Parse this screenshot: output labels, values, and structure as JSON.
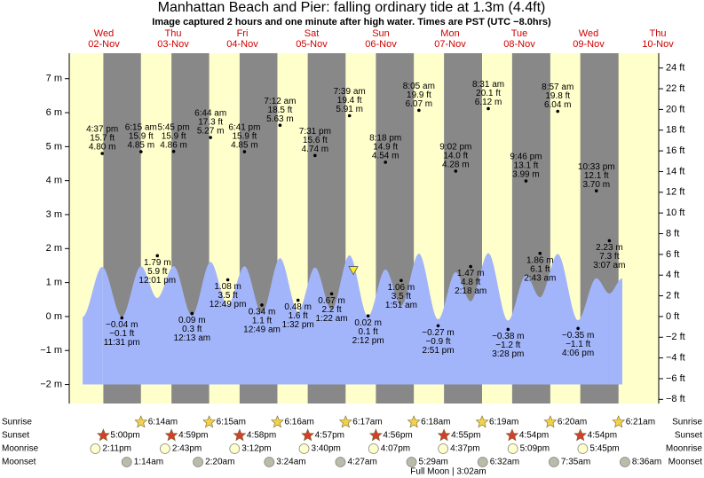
{
  "chart_data": {
    "type": "tide",
    "title": "Manhattan Beach and Pier: falling  ordinary tide at 1.3m (4.4ft)",
    "subtitle": "Image captured 2 hours and one minute after high water. Times are PST (UTC −8.0hrs)",
    "current_level_ft": 4.4,
    "ylim": [
      -2.56,
      7.75
    ],
    "yticks": [
      {
        "value": -2,
        "label": "−2 m"
      },
      {
        "value": -1,
        "label": "−1 m"
      },
      {
        "value": 0,
        "label": "0 m"
      },
      {
        "value": 1,
        "label": "1 m"
      },
      {
        "value": 2,
        "label": "2 m"
      },
      {
        "value": 3,
        "label": "3 m"
      },
      {
        "value": 4,
        "label": "4 m"
      },
      {
        "value": 5,
        "label": "5 m"
      },
      {
        "value": 6,
        "label": "6 m"
      },
      {
        "value": 7,
        "label": "7 m"
      }
    ],
    "y2lim": [
      -8.4,
      25.43
    ],
    "y2ticks": [
      {
        "value": -8,
        "label": "−8 ft"
      },
      {
        "value": -6,
        "label": "−6 ft"
      },
      {
        "value": -4,
        "label": "−4 ft"
      },
      {
        "value": -2,
        "label": "−2 ft"
      },
      {
        "value": 0,
        "label": "0 ft"
      },
      {
        "value": 2,
        "label": "2 ft"
      },
      {
        "value": 4,
        "label": "4 ft"
      },
      {
        "value": 6,
        "label": "6 ft"
      },
      {
        "value": 8,
        "label": "8 ft"
      },
      {
        "value": 10,
        "label": "10 ft"
      },
      {
        "value": 12,
        "label": "12 ft"
      },
      {
        "value": 14,
        "label": "14 ft"
      },
      {
        "value": 16,
        "label": "16 ft"
      },
      {
        "value": 18,
        "label": "18 ft"
      },
      {
        "value": 20,
        "label": "20 ft"
      },
      {
        "value": 22,
        "label": "22 ft"
      },
      {
        "value": 24,
        "label": "24 ft"
      }
    ],
    "curve_axis": "y2",
    "curve_color": "#a3b5fa",
    "night_color": "#888888",
    "day_color": "#ffffcc",
    "row_labels": [
      "Sunrise",
      "Sunset",
      "Moonrise",
      "Moonset"
    ],
    "moon_phase": "Full Moon | 3:02am",
    "days": [
      {
        "weekday": "Wed",
        "date": "02-Nov",
        "sunset": "5:00pm",
        "moonrise": "2:11pm",
        "tides": [
          {
            "time": "4:37 pm",
            "value": 4.8,
            "value_label": "4.80 m",
            "ft_label": "15.7 ft"
          },
          {
            "time": "11:31 pm",
            "value": -0.04,
            "value_label": "−0.04 m",
            "ft_label": "−0.1 ft"
          }
        ]
      },
      {
        "weekday": "Thu",
        "date": "03-Nov",
        "sunrise": "6:14am",
        "sunset": "4:59pm",
        "moonrise": "2:43pm",
        "moonset": "1:14am",
        "tides": [
          {
            "time": "6:15 am",
            "value": 4.85,
            "value_label": "4.85 m",
            "ft_label": "15.9 ft"
          },
          {
            "time": "12:01 pm",
            "value": 1.79,
            "value_label": "1.79 m",
            "ft_label": "5.9 ft"
          },
          {
            "time": "5:45 pm",
            "value": 4.86,
            "value_label": "4.86 m",
            "ft_label": "15.9 ft"
          }
        ]
      },
      {
        "weekday": "Fri",
        "date": "04-Nov",
        "sunrise": "6:15am",
        "sunset": "4:58pm",
        "moonrise": "3:12pm",
        "moonset": "2:20am",
        "tides": [
          {
            "time": "12:13 am",
            "value": 0.09,
            "value_label": "0.09 m",
            "ft_label": "0.3 ft"
          },
          {
            "time": "6:44 am",
            "value": 5.27,
            "value_label": "5.27 m",
            "ft_label": "17.3 ft"
          },
          {
            "time": "12:49 pm",
            "value": 1.08,
            "value_label": "1.08 m",
            "ft_label": "3.5 ft"
          },
          {
            "time": "6:41 pm",
            "value": 4.85,
            "value_label": "4.85 m",
            "ft_label": "15.9 ft"
          }
        ]
      },
      {
        "weekday": "Sat",
        "date": "05-Nov",
        "sunrise": "6:16am",
        "sunset": "4:57pm",
        "moonrise": "3:40pm",
        "moonset": "3:24am",
        "tides": [
          {
            "time": "12:49 am",
            "value": 0.34,
            "value_label": "0.34 m",
            "ft_label": "1.1 ft"
          },
          {
            "time": "7:12 am",
            "value": 5.63,
            "value_label": "5.63 m",
            "ft_label": "18.5 ft"
          },
          {
            "time": "1:32 pm",
            "value": 0.48,
            "value_label": "0.48 m",
            "ft_label": "1.6 ft"
          },
          {
            "time": "7:31 pm",
            "value": 4.74,
            "value_label": "4.74 m",
            "ft_label": "15.6 ft"
          }
        ]
      },
      {
        "weekday": "Sun",
        "date": "06-Nov",
        "sunrise": "6:17am",
        "sunset": "4:56pm",
        "moonrise": "4:07pm",
        "moonset": "4:27am",
        "tides": [
          {
            "time": "1:22 am",
            "value": 0.67,
            "value_label": "0.67 m",
            "ft_label": "2.2 ft"
          },
          {
            "time": "7:39 am",
            "value": 5.91,
            "value_label": "5.91 m",
            "ft_label": "19.4 ft"
          },
          {
            "time": "2:12 pm",
            "value": 0.02,
            "value_label": "0.02 m",
            "ft_label": "0.1 ft"
          },
          {
            "time": "8:18 pm",
            "value": 4.54,
            "value_label": "4.54 m",
            "ft_label": "14.9 ft"
          }
        ]
      },
      {
        "weekday": "Mon",
        "date": "07-Nov",
        "sunrise": "6:18am",
        "sunset": "4:55pm",
        "moonrise": "4:37pm",
        "moonset": "5:29am",
        "tides": [
          {
            "time": "1:51 am",
            "value": 1.06,
            "value_label": "1.06 m",
            "ft_label": "3.5 ft"
          },
          {
            "time": "8:05 am",
            "value": 6.07,
            "value_label": "6.07 m",
            "ft_label": "19.9 ft"
          },
          {
            "time": "2:51 pm",
            "value": -0.27,
            "value_label": "−0.27 m",
            "ft_label": "−0.9 ft"
          },
          {
            "time": "9:02 pm",
            "value": 4.28,
            "value_label": "4.28 m",
            "ft_label": "14.0 ft"
          }
        ]
      },
      {
        "weekday": "Tue",
        "date": "08-Nov",
        "sunrise": "6:19am",
        "sunset": "4:54pm",
        "moonrise": "5:09pm",
        "moonset": "6:32am",
        "tides": [
          {
            "time": "2:18 am",
            "value": 1.47,
            "value_label": "1.47 m",
            "ft_label": "4.8 ft"
          },
          {
            "time": "8:31 am",
            "value": 6.12,
            "value_label": "6.12 m",
            "ft_label": "20.1 ft"
          },
          {
            "time": "3:28 pm",
            "value": -0.38,
            "value_label": "−0.38 m",
            "ft_label": "−1.2 ft"
          },
          {
            "time": "9:46 pm",
            "value": 3.99,
            "value_label": "3.99 m",
            "ft_label": "13.1 ft"
          }
        ]
      },
      {
        "weekday": "Wed",
        "date": "09-Nov",
        "sunrise": "6:20am",
        "sunset": "4:54pm",
        "moonrise": "5:45pm",
        "moonset": "7:35am",
        "tides": [
          {
            "time": "2:43 am",
            "value": 1.86,
            "value_label": "1.86 m",
            "ft_label": "6.1 ft"
          },
          {
            "time": "8:57 am",
            "value": 6.04,
            "value_label": "6.04 m",
            "ft_label": "19.8 ft"
          },
          {
            "time": "4:06 pm",
            "value": -0.35,
            "value_label": "−0.35 m",
            "ft_label": "−1.1 ft"
          },
          {
            "time": "10:33 pm",
            "value": 3.7,
            "value_label": "3.70 m",
            "ft_label": "12.1 ft"
          }
        ]
      },
      {
        "weekday": "Thu",
        "date": "10-Nov",
        "sunrise": "6:21am",
        "moonset": "8:36am",
        "tides": [
          {
            "time": "3:07 am",
            "value": 2.23,
            "value_label": "2.23 m",
            "ft_label": "7.3 ft"
          }
        ]
      }
    ]
  }
}
